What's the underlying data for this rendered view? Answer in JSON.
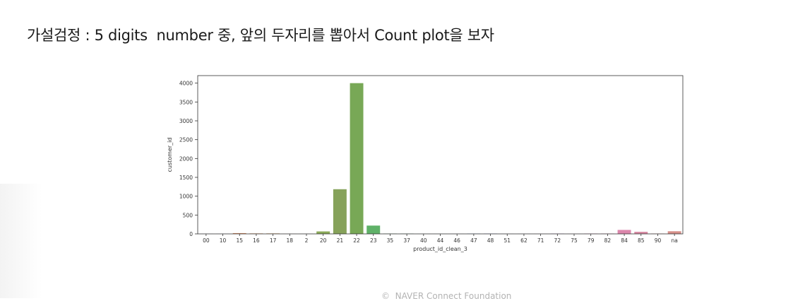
{
  "heading": "가설검정 : 5 digits  number 중, 앞의 두자리를 뽑아서 Count plot을 보자",
  "footer": "©  NAVER Connect Foundation",
  "chart_data": {
    "type": "bar",
    "categories": [
      "00",
      "10",
      "15",
      "16",
      "17",
      "18",
      "2",
      "20",
      "21",
      "22",
      "23",
      "35",
      "37",
      "40",
      "44",
      "46",
      "47",
      "48",
      "51",
      "62",
      "71",
      "72",
      "75",
      "79",
      "82",
      "84",
      "85",
      "90",
      "na"
    ],
    "values": [
      2,
      2,
      20,
      12,
      12,
      2,
      2,
      65,
      1185,
      4000,
      220,
      8,
      8,
      2,
      2,
      2,
      8,
      8,
      2,
      2,
      2,
      8,
      2,
      8,
      8,
      105,
      55,
      8,
      70
    ],
    "colors": [
      "#6c8fd4",
      "#7a9fcf",
      "#d98c5f",
      "#d9925f",
      "#c9965c",
      "#b09a55",
      "#9aa35a",
      "#8aaa58",
      "#86a25a",
      "#78a856",
      "#5fb168",
      "#62b386",
      "#63b19a",
      "#5cb0ab",
      "#5aaebd",
      "#5ba9cc",
      "#68a3d8",
      "#7e9be3",
      "#979ae6",
      "#a995e4",
      "#b98fe0",
      "#c68ad9",
      "#d086d0",
      "#d686c4",
      "#dc86b5",
      "#dc87ac",
      "#d88aa3",
      "#d78d96",
      "#d6908a"
    ],
    "xlabel": "product_id_clean_3",
    "ylabel": "customer_id",
    "ylim": [
      0,
      4200
    ],
    "yticks": [
      0,
      500,
      1000,
      1500,
      2000,
      2500,
      3000,
      3500,
      4000
    ],
    "ytick_labels": [
      "0",
      "500",
      "1000",
      "1500",
      "2000",
      "2500",
      "3000",
      "3500",
      "4000"
    ]
  }
}
